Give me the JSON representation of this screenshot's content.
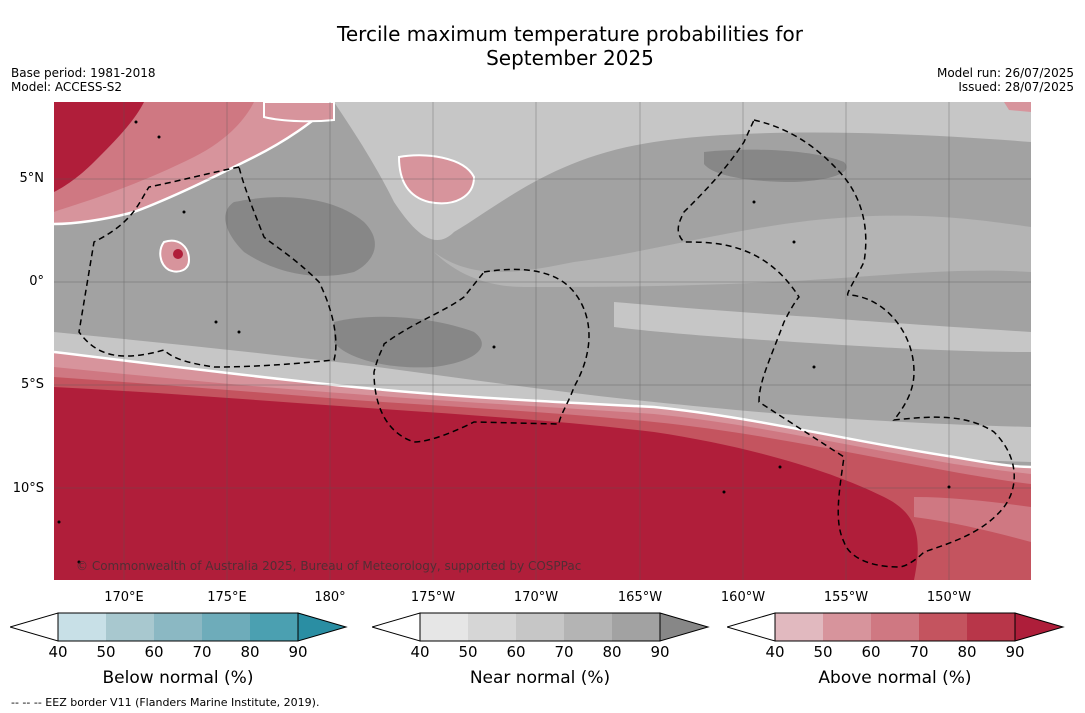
{
  "title_line1": "Tercile maximum temperature probabilities for",
  "title_line2": "September 2025",
  "base_period": "Base period: 1981-2018",
  "model": "Model: ACCESS-S2",
  "model_run": "Model run: 26/07/2025",
  "issued": "Issued: 28/07/2025",
  "lat_labels": [
    "5°N",
    "0°",
    "5°S",
    "10°S"
  ],
  "lon_labels": [
    "170°E",
    "175°E",
    "180°",
    "175°W",
    "170°W",
    "165°W",
    "160°W",
    "155°W",
    "150°W"
  ],
  "copyright": "© Commonwealth of Australia 2025, Bureau of Meteorology, supported by COSPPac",
  "colorbars": [
    {
      "title": "Below normal (%)",
      "ticks": [
        "40",
        "50",
        "60",
        "70",
        "80",
        "90"
      ],
      "colors": [
        "#c8e0e7",
        "#a8c8cf",
        "#8bb8c3",
        "#6eacba",
        "#4ba0b1",
        "#2a8ea3"
      ]
    },
    {
      "title": "Near normal (%)",
      "ticks": [
        "40",
        "50",
        "60",
        "70",
        "80",
        "90"
      ],
      "colors": [
        "#e6e6e6",
        "#d6d6d6",
        "#c6c6c6",
        "#b4b4b4",
        "#a2a2a2",
        "#878787"
      ]
    },
    {
      "title": "Above normal (%)",
      "ticks": [
        "40",
        "50",
        "60",
        "70",
        "80",
        "90"
      ],
      "colors": [
        "#e1b9bf",
        "#d7949c",
        "#cf7882",
        "#c4545f",
        "#b83649",
        "#ae1e3a"
      ]
    }
  ],
  "footer": "--  --  -- EEZ border V11 (Flanders Marine Institute, 2019).",
  "colors": {
    "above_dark": "#b01e3a",
    "above_mid": "#c4545f",
    "above_light": "#d7949c",
    "near_dark": "#878787",
    "near_mid": "#a2a2a2",
    "near_light": "#c6c6c6",
    "near_lightest": "#d6d6d6"
  }
}
